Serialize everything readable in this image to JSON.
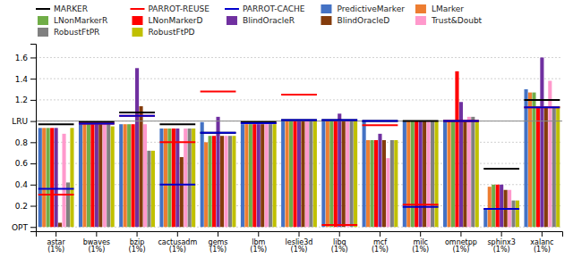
{
  "chart_data": {
    "type": "bar",
    "categories": [
      "astar\n(1%)",
      "bwaves\n(1%)",
      "bzip\n(1%)",
      "cactusadm\n(1%)",
      "gems\n(1%)",
      "lbm\n(1%)",
      "leslie3d\n(1%)",
      "libq\n(1%)",
      "mcf\n(1%)",
      "milc\n(1%)",
      "omnetpp\n(1%)",
      "sphinx3\n(1%)",
      "xalanc\n(1%)"
    ],
    "series": [
      {
        "name": "MARKER",
        "type": "hline",
        "color": "#000000",
        "values": [
          0.97,
          0.99,
          1.08,
          0.97,
          0.89,
          0.99,
          1.01,
          1.01,
          1.0,
          1.0,
          1.0,
          0.55,
          1.2
        ]
      },
      {
        "name": "PARROT-REUSE",
        "type": "hline",
        "color": "#ff0000",
        "values": [
          0.305,
          0.975,
          1.05,
          0.8,
          1.28,
          0.98,
          1.25,
          0.02,
          0.96,
          0.21,
          1.0,
          0.17,
          1.13
        ]
      },
      {
        "name": "PARROT-CACHE",
        "type": "hline",
        "color": "#0000cd",
        "values": [
          0.36,
          0.975,
          1.05,
          0.4,
          0.89,
          0.98,
          1.01,
          1.01,
          1.0,
          0.19,
          1.0,
          0.17,
          1.13
        ]
      },
      {
        "name": "PredictiveMarker",
        "type": "bar",
        "color": "#4472c4",
        "values": [
          0.935,
          0.97,
          0.97,
          0.93,
          0.99,
          0.97,
          1.0,
          1.0,
          1.0,
          1.0,
          1.0,
          0.17,
          1.3
        ]
      },
      {
        "name": "LMarker",
        "type": "bar",
        "color": "#ed7d31",
        "values": [
          0.935,
          0.97,
          0.97,
          0.93,
          0.8,
          0.97,
          1.0,
          1.0,
          0.82,
          1.0,
          1.0,
          0.38,
          1.27
        ]
      },
      {
        "name": "LNonMarkerR",
        "type": "bar",
        "color": "#70ad47",
        "values": [
          0.935,
          0.97,
          0.97,
          0.93,
          0.86,
          0.97,
          1.0,
          1.0,
          0.82,
          1.0,
          1.0,
          0.4,
          1.27
        ]
      },
      {
        "name": "LNonMarkerD",
        "type": "bar",
        "color": "#ff0000",
        "values": [
          0.935,
          0.97,
          0.97,
          0.93,
          0.86,
          0.97,
          1.0,
          1.0,
          0.82,
          1.0,
          1.47,
          0.4,
          1.14
        ]
      },
      {
        "name": "BlindOracleR",
        "type": "bar",
        "color": "#7030a0",
        "values": [
          0.935,
          0.97,
          1.5,
          0.93,
          1.04,
          0.97,
          1.0,
          1.07,
          0.88,
          1.0,
          1.18,
          0.4,
          1.6
        ]
      },
      {
        "name": "BlindOracleD",
        "type": "bar",
        "color": "#843c0c",
        "values": [
          0.04,
          0.97,
          1.14,
          0.66,
          0.86,
          0.97,
          1.0,
          1.0,
          0.82,
          1.0,
          1.0,
          0.35,
          1.14
        ]
      },
      {
        "name": "Trust&Doubt",
        "type": "bar",
        "color": "#ff99cc",
        "values": [
          0.88,
          0.97,
          0.97,
          0.93,
          0.86,
          0.97,
          1.0,
          1.0,
          0.65,
          1.0,
          1.04,
          0.35,
          1.38
        ]
      },
      {
        "name": "RobustFtPR",
        "type": "bar",
        "color": "#808080",
        "values": [
          0.42,
          0.97,
          0.72,
          0.93,
          0.86,
          0.97,
          1.0,
          1.0,
          0.82,
          1.0,
          1.04,
          0.25,
          1.14
        ]
      },
      {
        "name": "RobustFtPD",
        "type": "bar",
        "color": "#c0c000",
        "values": [
          0.935,
          0.95,
          0.72,
          0.93,
          0.86,
          0.97,
          1.0,
          1.0,
          0.82,
          1.0,
          1.0,
          0.25,
          1.14
        ]
      }
    ],
    "reference_lines": [
      {
        "value": 1.0,
        "color": "#888888"
      }
    ],
    "ylim": [
      -0.04,
      1.73
    ],
    "yticks": [
      {
        "value": 0.0,
        "label": "OPT"
      },
      0.2,
      0.4,
      0.6,
      0.8,
      {
        "value": 1.0,
        "label": "LRU"
      },
      1.2,
      1.4,
      1.6
    ],
    "grid": true,
    "legend": "upper-left"
  }
}
